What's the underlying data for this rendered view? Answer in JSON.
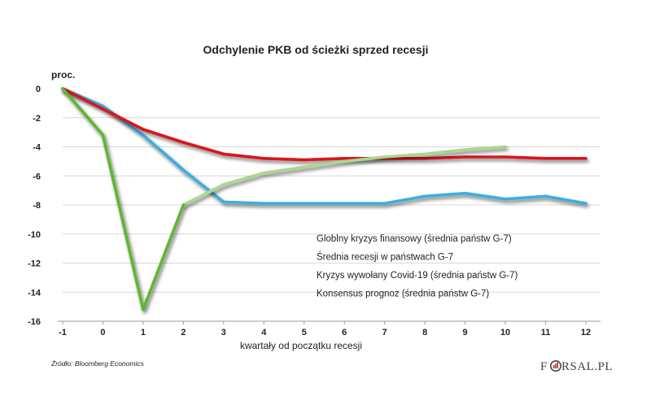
{
  "chart_data": {
    "type": "line",
    "title": "Odchylenie PKB od ścieżki sprzed recesji",
    "ylabel": "proc.",
    "xlabel": "kwartały od początku recesji",
    "x": [
      -1,
      0,
      1,
      2,
      3,
      4,
      5,
      6,
      7,
      8,
      9,
      10,
      11,
      12
    ],
    "xticks": [
      "-1",
      "0",
      "1",
      "2",
      "3",
      "4",
      "5",
      "6",
      "7",
      "8",
      "9",
      "10",
      "11",
      "12"
    ],
    "yticks": [
      "0",
      "-2",
      "-4",
      "-6",
      "-8",
      "-10",
      "-12",
      "-14",
      "-16"
    ],
    "ylim": [
      -16,
      0
    ],
    "xlim": [
      -1,
      12
    ],
    "grid": true,
    "legend_position": "center-right",
    "series": [
      {
        "name": "Globlny kryzys finansowy (średnia państw G-7)",
        "color": "#3aaee0",
        "x": [
          -1,
          0,
          1,
          2,
          3,
          4,
          5,
          6,
          7,
          8,
          9,
          10,
          11,
          12
        ],
        "values": [
          0,
          -1.2,
          -3.2,
          -5.6,
          -7.8,
          -7.9,
          -7.9,
          -7.9,
          -7.9,
          -7.4,
          -7.2,
          -7.6,
          -7.4,
          -7.9
        ]
      },
      {
        "name": "Średnia recesji w państwach G-7",
        "color": "#d9141c",
        "x": [
          -1,
          0,
          1,
          2,
          3,
          4,
          5,
          6,
          7,
          8,
          9,
          10,
          11,
          12
        ],
        "values": [
          0,
          -1.4,
          -2.8,
          -3.7,
          -4.5,
          -4.8,
          -4.9,
          -4.8,
          -4.8,
          -4.8,
          -4.7,
          -4.7,
          -4.8,
          -4.8
        ]
      },
      {
        "name": "Kryzys wywołany Covid-19 (średnia państw G-7)",
        "color": "#5cb82e",
        "x": [
          -1,
          0,
          1,
          2
        ],
        "values": [
          0,
          -3.2,
          -15.2,
          -8.0
        ]
      },
      {
        "name": "Konsensus prognoz (średnia państw G-7)",
        "color": "#a9d78c",
        "x": [
          2,
          3,
          4,
          5,
          6,
          7,
          8,
          9,
          10
        ],
        "values": [
          -8.0,
          -6.6,
          -5.8,
          -5.4,
          -5.0,
          -4.7,
          -4.5,
          -4.2,
          -4.0
        ]
      }
    ]
  },
  "source": "Źródło: Bloomberg Economics",
  "logo": {
    "pre": "F",
    "post": "RSAL.PL"
  }
}
